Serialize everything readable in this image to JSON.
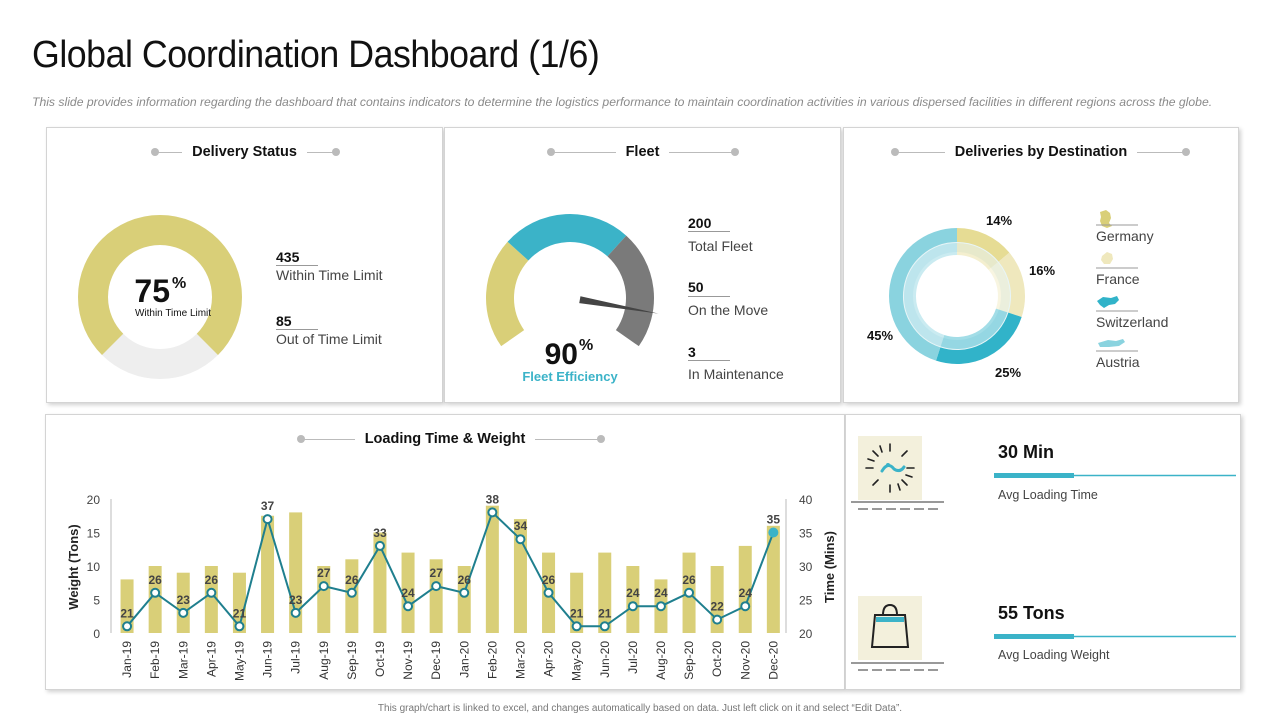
{
  "page": {
    "title": "Global Coordination Dashboard (1/6)",
    "subtitle": "This slide provides information regarding the dashboard  that contains indicators to determine the logistics performance  to maintain coordination activities in various dispersed facilities in different regions across the globe.",
    "footer": "This graph/chart is linked to excel, and changes automatically  based on data. Just left click on it and select “Edit Data”."
  },
  "colors": {
    "olive": "#d9cf78",
    "teal": "#3bb3c8",
    "grey": "#7a7a7a",
    "light": "#eeeeee",
    "line": "#1f7f8e"
  },
  "delivery_status": {
    "title": "Delivery Status",
    "percent": "75",
    "percent_sign": "%",
    "center_label": "Within Time Limit",
    "fraction": 0.75,
    "stats": [
      {
        "value": "435",
        "label": "Within Time Limit"
      },
      {
        "value": "85",
        "label": "Out of Time Limit"
      }
    ]
  },
  "fleet": {
    "title": "Fleet",
    "percent": "90",
    "percent_sign": "%",
    "label": "Fleet Efficiency",
    "needle_fraction": 0.9,
    "stats": [
      {
        "value": "200",
        "label": "Total Fleet"
      },
      {
        "value": "50",
        "label": "On the Move"
      },
      {
        "value": "3",
        "label": "In Maintenance"
      }
    ]
  },
  "destinations": {
    "title": "Deliveries by Destination",
    "slices": [
      {
        "name": "Germany",
        "label": "14%",
        "value": 14,
        "color": "#e6dc94"
      },
      {
        "name": "France",
        "label": "16%",
        "value": 16,
        "color": "#efe8bd"
      },
      {
        "name": "Switzerland",
        "label": "25%",
        "value": 25,
        "color": "#31b3c9"
      },
      {
        "name": "Austria",
        "label": "45%",
        "value": 45,
        "color": "#8ad3df"
      }
    ]
  },
  "kpis": [
    {
      "title": "30 Min",
      "label": "Avg Loading Time",
      "icon": "loading-time-icon"
    },
    {
      "title": "55 Tons",
      "label": "Avg Loading Weight",
      "icon": "shopping-bag-icon"
    }
  ],
  "chart_data": {
    "type": "bar+line",
    "title": "Loading Time & Weight",
    "categories": [
      "Jan-19",
      "Feb-19",
      "Mar-19",
      "Apr-19",
      "May-19",
      "Jun-19",
      "Jul-19",
      "Aug-19",
      "Sep-19",
      "Oct-19",
      "Nov-19",
      "Dec-19",
      "Jan-20",
      "Feb-20",
      "Mar-20",
      "Apr-20",
      "May-20",
      "Jun-20",
      "Jul-20",
      "Aug-20",
      "Sep-20",
      "Oct-20",
      "Nov-20",
      "Dec-20"
    ],
    "series": [
      {
        "name": "Weight (Tons)",
        "type": "bar",
        "axis": "left",
        "values": [
          8,
          10,
          9,
          10,
          9,
          17.5,
          18,
          10,
          11,
          15,
          12,
          11,
          10,
          19,
          17,
          12,
          9,
          12,
          10,
          8,
          12,
          10,
          13,
          16
        ]
      },
      {
        "name": "Time (Mins)",
        "type": "line",
        "axis": "right",
        "values": [
          21,
          26,
          23,
          26,
          21,
          37,
          23,
          27,
          26,
          33,
          24,
          27,
          26,
          38,
          34,
          26,
          21,
          21,
          24,
          24,
          26,
          22,
          24,
          35
        ],
        "labels": [
          "21",
          "26",
          "23",
          "26",
          "21",
          "37",
          "23",
          "27",
          "26",
          "33",
          "24",
          "27",
          "26",
          "38",
          "34",
          "26",
          "21",
          "21",
          "24",
          "24",
          "26",
          "22",
          "24",
          "35"
        ]
      }
    ],
    "ylabel_left": "Weight (Tons)",
    "ylabel_right": "Time (Mins)",
    "ylim_left": [
      0,
      20
    ],
    "ylim_right": [
      20,
      40
    ],
    "yticks_left": [
      "0",
      "5",
      "10",
      "15",
      "20"
    ],
    "yticks_right": [
      "20",
      "25",
      "30",
      "35",
      "40"
    ]
  }
}
